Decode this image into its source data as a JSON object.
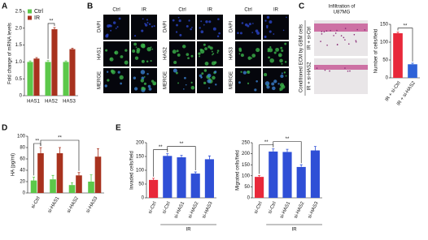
{
  "panel_labels": [
    "A",
    "B",
    "C",
    "D",
    "E"
  ],
  "microscopy": {
    "blocks": [
      {
        "columns": [
          "Ctrl",
          "IR"
        ],
        "rows": [
          "DAPI",
          "HAS1",
          "MERGE"
        ]
      },
      {
        "columns": [
          "Ctrl",
          "IR"
        ],
        "rows": [
          "DAPI",
          "HAS2",
          "MERGE"
        ]
      },
      {
        "columns": [
          "Ctrl",
          "IR"
        ],
        "rows": [
          "DAPI",
          "HAS3",
          "MERGE"
        ]
      }
    ]
  },
  "infiltration": {
    "title_lines": [
      "Infiltration of",
      "U87MG"
    ],
    "side_label": "Conditioned ECM by GBM cells",
    "image_labels": [
      "IR + si-Ctrl",
      "IR + si-HAS2"
    ]
  },
  "chart_data": [
    {
      "type": "bar",
      "ylabel": "Fold change of mRNA levels",
      "categories": [
        "HAS1",
        "HAS2",
        "HAS3"
      ],
      "series": [
        {
          "name": "Ctrl",
          "color": "#5cc84a",
          "values": [
            1.0,
            1.0,
            1.0
          ],
          "errors": [
            0.03,
            0.04,
            0.03
          ]
        },
        {
          "name": "IR",
          "color": "#a8321e",
          "values": [
            1.1,
            1.97,
            1.38
          ],
          "errors": [
            0.03,
            0.05,
            0.03
          ]
        }
      ],
      "ylim": [
        0,
        2.5
      ],
      "yticks": [
        0,
        0.5,
        {
          "value": 1,
          "label": "1.0"
        },
        1.5,
        {
          "value": 2,
          "label": "2.0"
        },
        2.5
      ],
      "annotations": [
        "**"
      ]
    },
    {
      "type": "bar",
      "ylabel": "Number of cells/field",
      "categories": [
        "IR + si-Ctrl",
        "IR + si-HAS2"
      ],
      "series": [
        {
          "colors": [
            "#e8283a",
            "#2f63d8"
          ],
          "values": [
            125,
            38
          ],
          "errors": [
            3,
            3
          ]
        }
      ],
      "ylim": [
        0,
        150
      ],
      "yticks": [
        0,
        50,
        100,
        150
      ],
      "annotations": [
        "**"
      ]
    },
    {
      "type": "bar",
      "ylabel": "HA (pg/ml)",
      "categories": [
        "si-Ctrl",
        "si-HAS1",
        "si-HAS2",
        "si-HAS3"
      ],
      "series": [
        {
          "color": "#5cc84a",
          "values": [
            22,
            24,
            14,
            20
          ],
          "errors": [
            6,
            7,
            4,
            12
          ]
        },
        {
          "color": "#a8321e",
          "values": [
            70,
            70,
            31,
            64
          ],
          "errors": [
            10,
            10,
            5,
            14
          ]
        }
      ],
      "ylim": [
        0,
        100
      ],
      "yticks": [
        0,
        20,
        40,
        60,
        80,
        100
      ],
      "annotations": [
        "**",
        "**"
      ]
    },
    {
      "type": "bar",
      "ylabel": "Invaded cells/field",
      "categories": [
        "si-Ctrl",
        "si-Ctrl",
        "si-HAS1",
        "si-HAS2",
        "si-HAS3"
      ],
      "group_label": "IR",
      "series": [
        {
          "colors": [
            "#e8283a",
            "#2f4fd6",
            "#2f4fd6",
            "#2f4fd6",
            "#2f4fd6"
          ],
          "values": [
            65,
            152,
            147,
            88,
            140
          ],
          "errors": [
            6,
            8,
            7,
            6,
            12
          ]
        }
      ],
      "ylim": [
        0,
        200
      ],
      "yticks": [
        0,
        50,
        100,
        150,
        200
      ],
      "annotations": [
        "**",
        "**"
      ]
    },
    {
      "type": "bar",
      "ylabel": "Migrated cells/field",
      "categories": [
        "si-Ctrl",
        "si-Ctrl",
        "si-HAS1",
        "si-HAS2",
        "si-HAS3"
      ],
      "group_label": "IR",
      "series": [
        {
          "colors": [
            "#e8283a",
            "#2f4fd6",
            "#2f4fd6",
            "#2f4fd6",
            "#2f4fd6"
          ],
          "values": [
            95,
            210,
            208,
            140,
            215
          ],
          "errors": [
            6,
            12,
            12,
            10,
            18
          ]
        }
      ],
      "ylim": [
        0,
        250
      ],
      "yticks": [
        0,
        50,
        100,
        150,
        200,
        250
      ],
      "annotations": [
        "**",
        "**"
      ]
    }
  ]
}
